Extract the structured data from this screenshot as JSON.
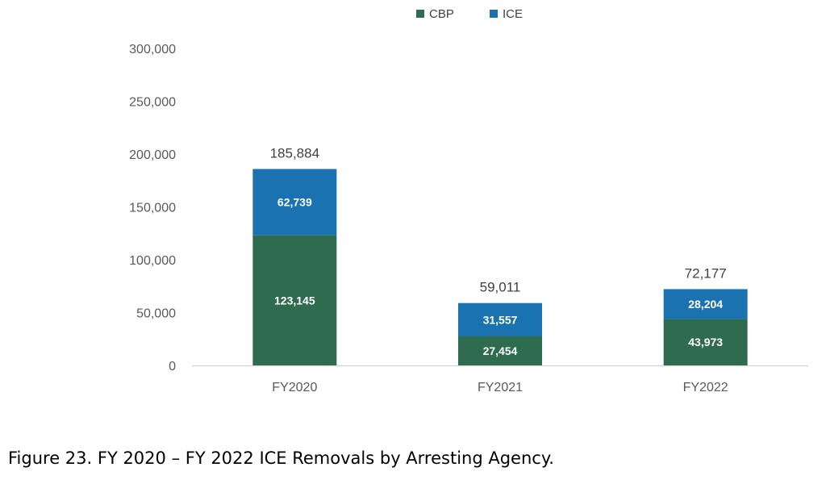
{
  "caption": "Figure 23. FY 2020 – FY 2022 ICE Removals by Arresting Agency.",
  "chart_data": {
    "type": "bar",
    "stacked": true,
    "categories": [
      "FY2020",
      "FY2021",
      "FY2022"
    ],
    "series": [
      {
        "name": "CBP",
        "color": "#2e6b4f",
        "values": [
          123145,
          27454,
          43973
        ],
        "labels": [
          "123,145",
          "27,454",
          "43,973"
        ]
      },
      {
        "name": "ICE",
        "color": "#1a72b0",
        "values": [
          62739,
          31557,
          28204
        ],
        "labels": [
          "62,739",
          "31,557",
          "28,204"
        ]
      }
    ],
    "totals": [
      185884,
      59011,
      72177
    ],
    "total_labels": [
      "185,884",
      "59,011",
      "72,177"
    ],
    "ylim": [
      0,
      300000
    ],
    "yticks": [
      0,
      50000,
      100000,
      150000,
      200000,
      250000,
      300000
    ],
    "ytick_labels": [
      "0",
      "50,000",
      "100,000",
      "150,000",
      "200,000",
      "250,000",
      "300,000"
    ],
    "grid": false,
    "legend_position": "top-center",
    "title": "",
    "xlabel": "",
    "ylabel": ""
  }
}
